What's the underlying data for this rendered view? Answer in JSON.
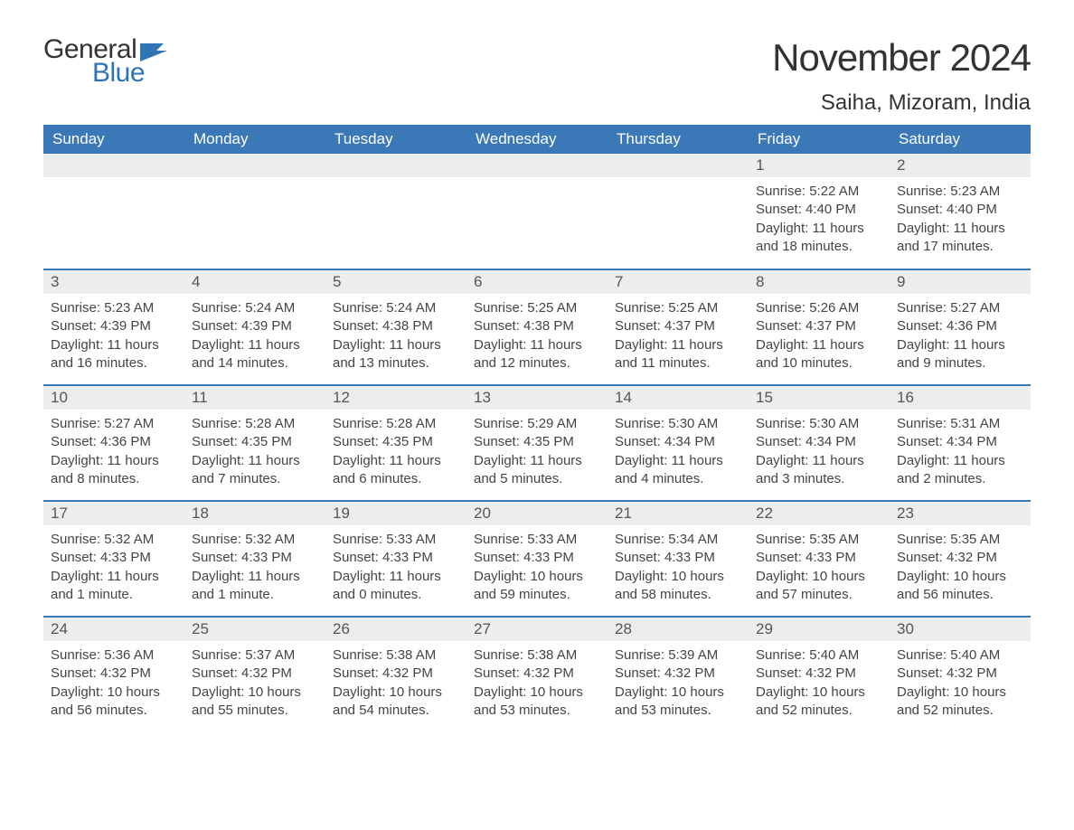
{
  "logo": {
    "word1": "General",
    "word2": "Blue",
    "flag_color": "#2f74b5"
  },
  "title": "November 2024",
  "location": "Saiha, Mizoram, India",
  "colors": {
    "header_bg": "#3b78b8",
    "header_text": "#ffffff",
    "daynum_bg": "#ededed",
    "border": "#3b78b8",
    "body_text": "#444444",
    "title_text": "#333333",
    "logo_blue": "#2f74b5"
  },
  "layout": {
    "columns": 7,
    "rows": 5,
    "start_day_index": 5
  },
  "weekdays": [
    "Sunday",
    "Monday",
    "Tuesday",
    "Wednesday",
    "Thursday",
    "Friday",
    "Saturday"
  ],
  "days": [
    {
      "n": 1,
      "sunrise": "5:22 AM",
      "sunset": "4:40 PM",
      "daylight": "11 hours and 18 minutes."
    },
    {
      "n": 2,
      "sunrise": "5:23 AM",
      "sunset": "4:40 PM",
      "daylight": "11 hours and 17 minutes."
    },
    {
      "n": 3,
      "sunrise": "5:23 AM",
      "sunset": "4:39 PM",
      "daylight": "11 hours and 16 minutes."
    },
    {
      "n": 4,
      "sunrise": "5:24 AM",
      "sunset": "4:39 PM",
      "daylight": "11 hours and 14 minutes."
    },
    {
      "n": 5,
      "sunrise": "5:24 AM",
      "sunset": "4:38 PM",
      "daylight": "11 hours and 13 minutes."
    },
    {
      "n": 6,
      "sunrise": "5:25 AM",
      "sunset": "4:38 PM",
      "daylight": "11 hours and 12 minutes."
    },
    {
      "n": 7,
      "sunrise": "5:25 AM",
      "sunset": "4:37 PM",
      "daylight": "11 hours and 11 minutes."
    },
    {
      "n": 8,
      "sunrise": "5:26 AM",
      "sunset": "4:37 PM",
      "daylight": "11 hours and 10 minutes."
    },
    {
      "n": 9,
      "sunrise": "5:27 AM",
      "sunset": "4:36 PM",
      "daylight": "11 hours and 9 minutes."
    },
    {
      "n": 10,
      "sunrise": "5:27 AM",
      "sunset": "4:36 PM",
      "daylight": "11 hours and 8 minutes."
    },
    {
      "n": 11,
      "sunrise": "5:28 AM",
      "sunset": "4:35 PM",
      "daylight": "11 hours and 7 minutes."
    },
    {
      "n": 12,
      "sunrise": "5:28 AM",
      "sunset": "4:35 PM",
      "daylight": "11 hours and 6 minutes."
    },
    {
      "n": 13,
      "sunrise": "5:29 AM",
      "sunset": "4:35 PM",
      "daylight": "11 hours and 5 minutes."
    },
    {
      "n": 14,
      "sunrise": "5:30 AM",
      "sunset": "4:34 PM",
      "daylight": "11 hours and 4 minutes."
    },
    {
      "n": 15,
      "sunrise": "5:30 AM",
      "sunset": "4:34 PM",
      "daylight": "11 hours and 3 minutes."
    },
    {
      "n": 16,
      "sunrise": "5:31 AM",
      "sunset": "4:34 PM",
      "daylight": "11 hours and 2 minutes."
    },
    {
      "n": 17,
      "sunrise": "5:32 AM",
      "sunset": "4:33 PM",
      "daylight": "11 hours and 1 minute."
    },
    {
      "n": 18,
      "sunrise": "5:32 AM",
      "sunset": "4:33 PM",
      "daylight": "11 hours and 1 minute."
    },
    {
      "n": 19,
      "sunrise": "5:33 AM",
      "sunset": "4:33 PM",
      "daylight": "11 hours and 0 minutes."
    },
    {
      "n": 20,
      "sunrise": "5:33 AM",
      "sunset": "4:33 PM",
      "daylight": "10 hours and 59 minutes."
    },
    {
      "n": 21,
      "sunrise": "5:34 AM",
      "sunset": "4:33 PM",
      "daylight": "10 hours and 58 minutes."
    },
    {
      "n": 22,
      "sunrise": "5:35 AM",
      "sunset": "4:33 PM",
      "daylight": "10 hours and 57 minutes."
    },
    {
      "n": 23,
      "sunrise": "5:35 AM",
      "sunset": "4:32 PM",
      "daylight": "10 hours and 56 minutes."
    },
    {
      "n": 24,
      "sunrise": "5:36 AM",
      "sunset": "4:32 PM",
      "daylight": "10 hours and 56 minutes."
    },
    {
      "n": 25,
      "sunrise": "5:37 AM",
      "sunset": "4:32 PM",
      "daylight": "10 hours and 55 minutes."
    },
    {
      "n": 26,
      "sunrise": "5:38 AM",
      "sunset": "4:32 PM",
      "daylight": "10 hours and 54 minutes."
    },
    {
      "n": 27,
      "sunrise": "5:38 AM",
      "sunset": "4:32 PM",
      "daylight": "10 hours and 53 minutes."
    },
    {
      "n": 28,
      "sunrise": "5:39 AM",
      "sunset": "4:32 PM",
      "daylight": "10 hours and 53 minutes."
    },
    {
      "n": 29,
      "sunrise": "5:40 AM",
      "sunset": "4:32 PM",
      "daylight": "10 hours and 52 minutes."
    },
    {
      "n": 30,
      "sunrise": "5:40 AM",
      "sunset": "4:32 PM",
      "daylight": "10 hours and 52 minutes."
    }
  ],
  "labels": {
    "sunrise": "Sunrise:",
    "sunset": "Sunset:",
    "daylight": "Daylight:"
  }
}
